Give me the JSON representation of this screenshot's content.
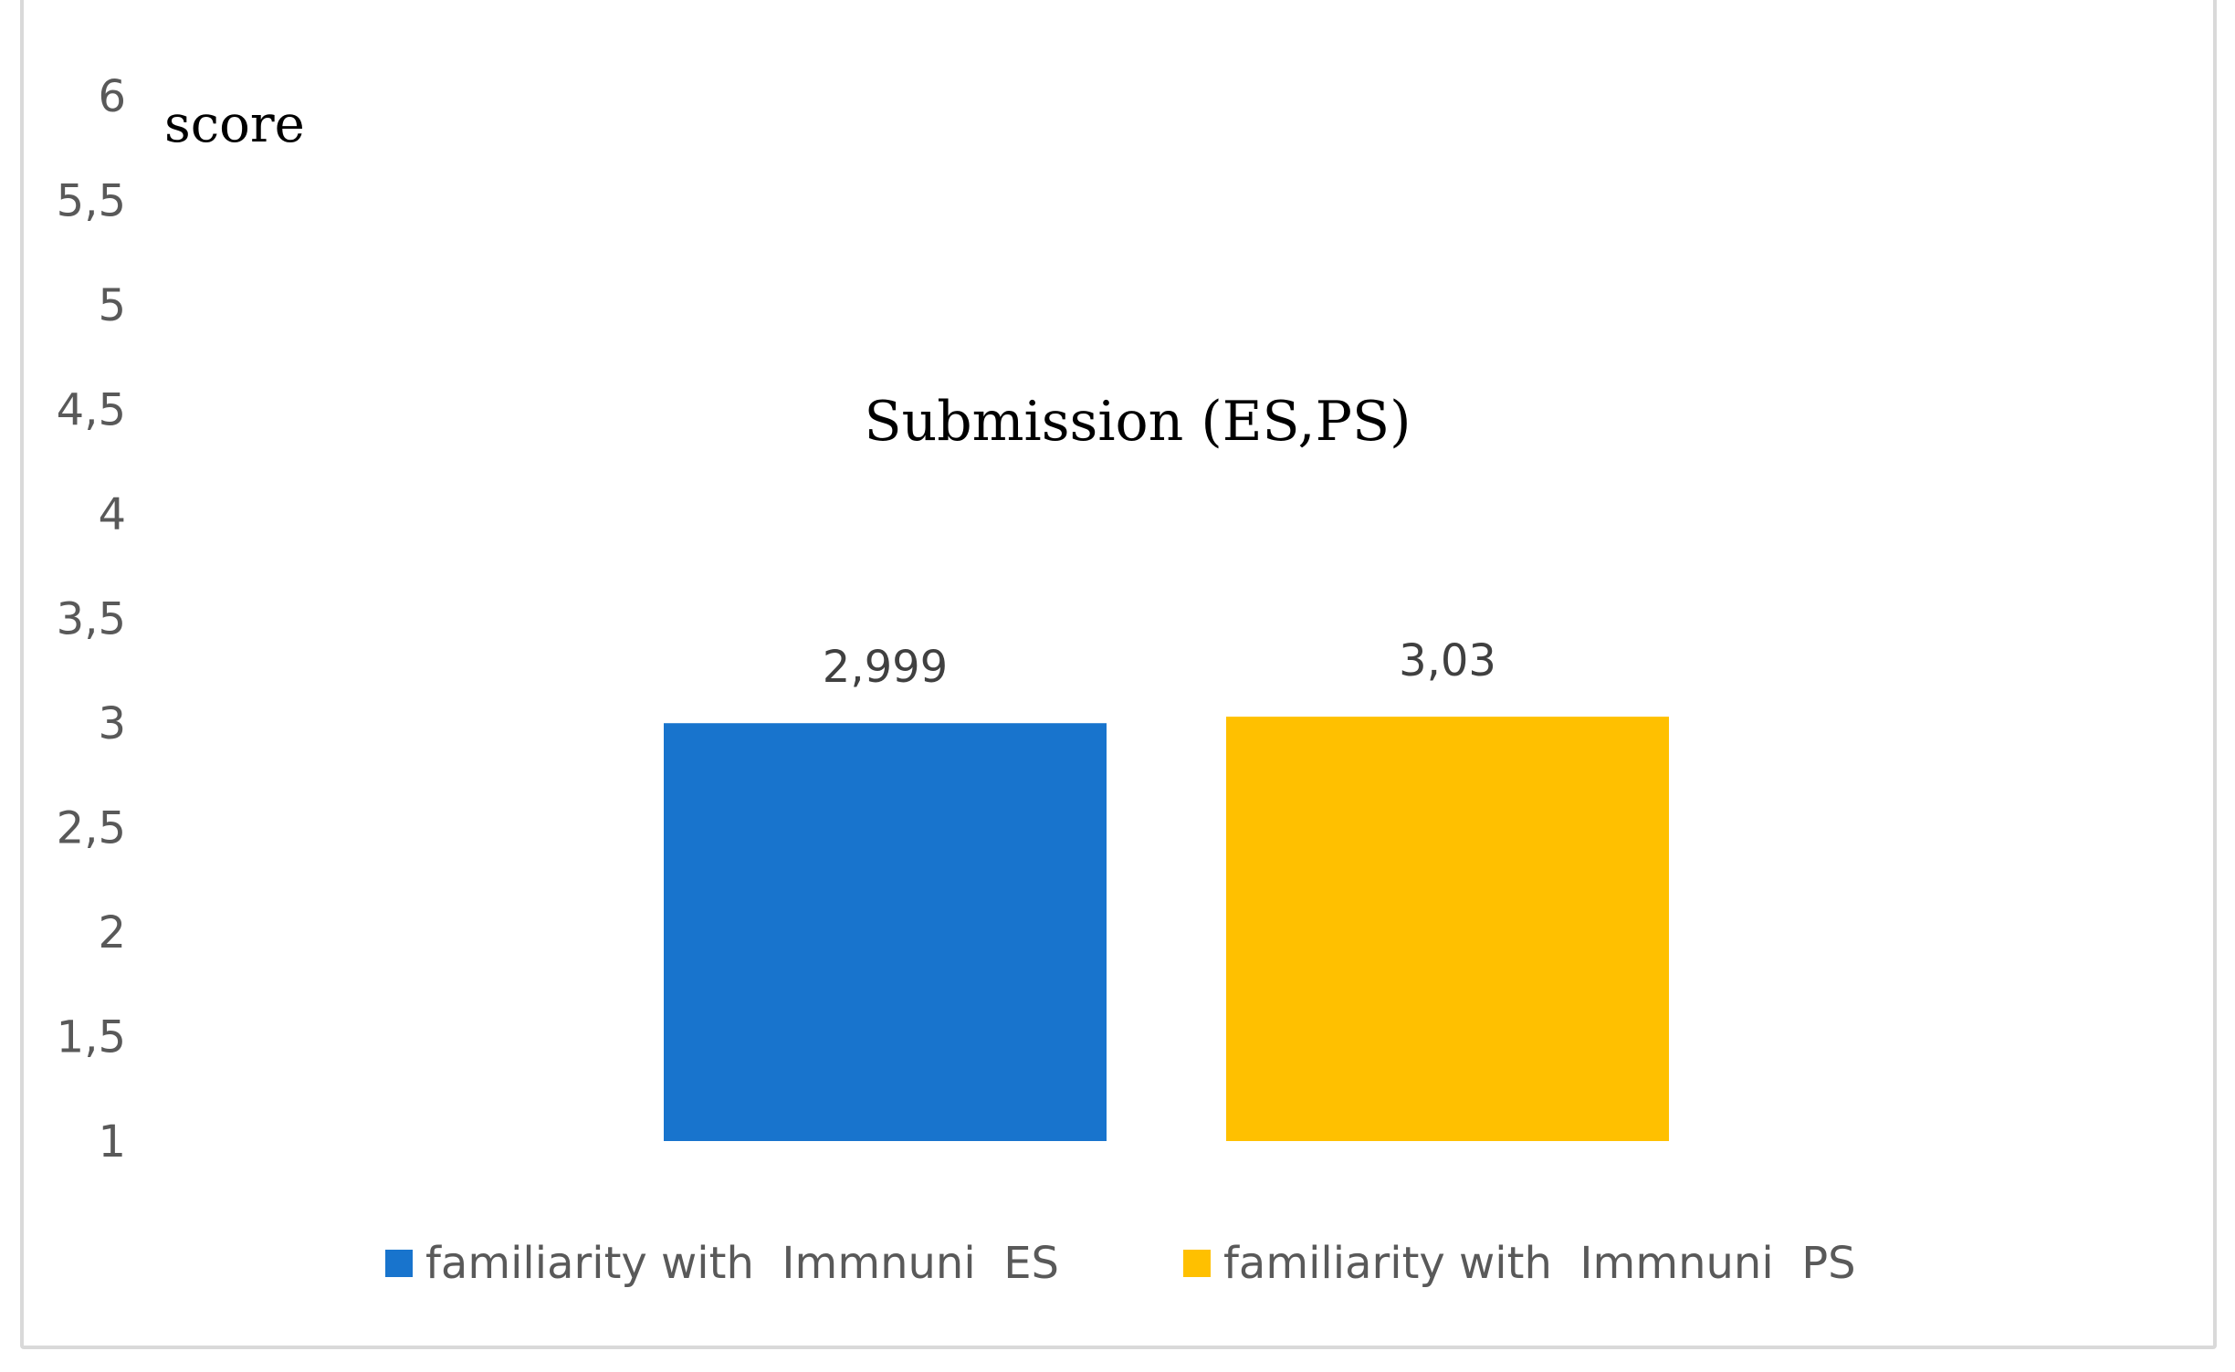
{
  "chart_data": {
    "type": "bar",
    "title": "Submission (ES,PS)",
    "ylabel": "score",
    "ylim": [
      1,
      6
    ],
    "yticks": [
      "1",
      "1,5",
      "2",
      "2,5",
      "3",
      "3,5",
      "4",
      "4,5",
      "5",
      "5,5",
      "6"
    ],
    "grid": false,
    "legend_position": "bottom",
    "series": [
      {
        "name": "familiarity with  Immnuni  ES",
        "value": 2.999,
        "label": "2,999",
        "color": "#1874CD"
      },
      {
        "name": "familiarity with  Immnuni  PS",
        "value": 3.03,
        "label": "3,03",
        "color": "#FFC000"
      }
    ]
  }
}
